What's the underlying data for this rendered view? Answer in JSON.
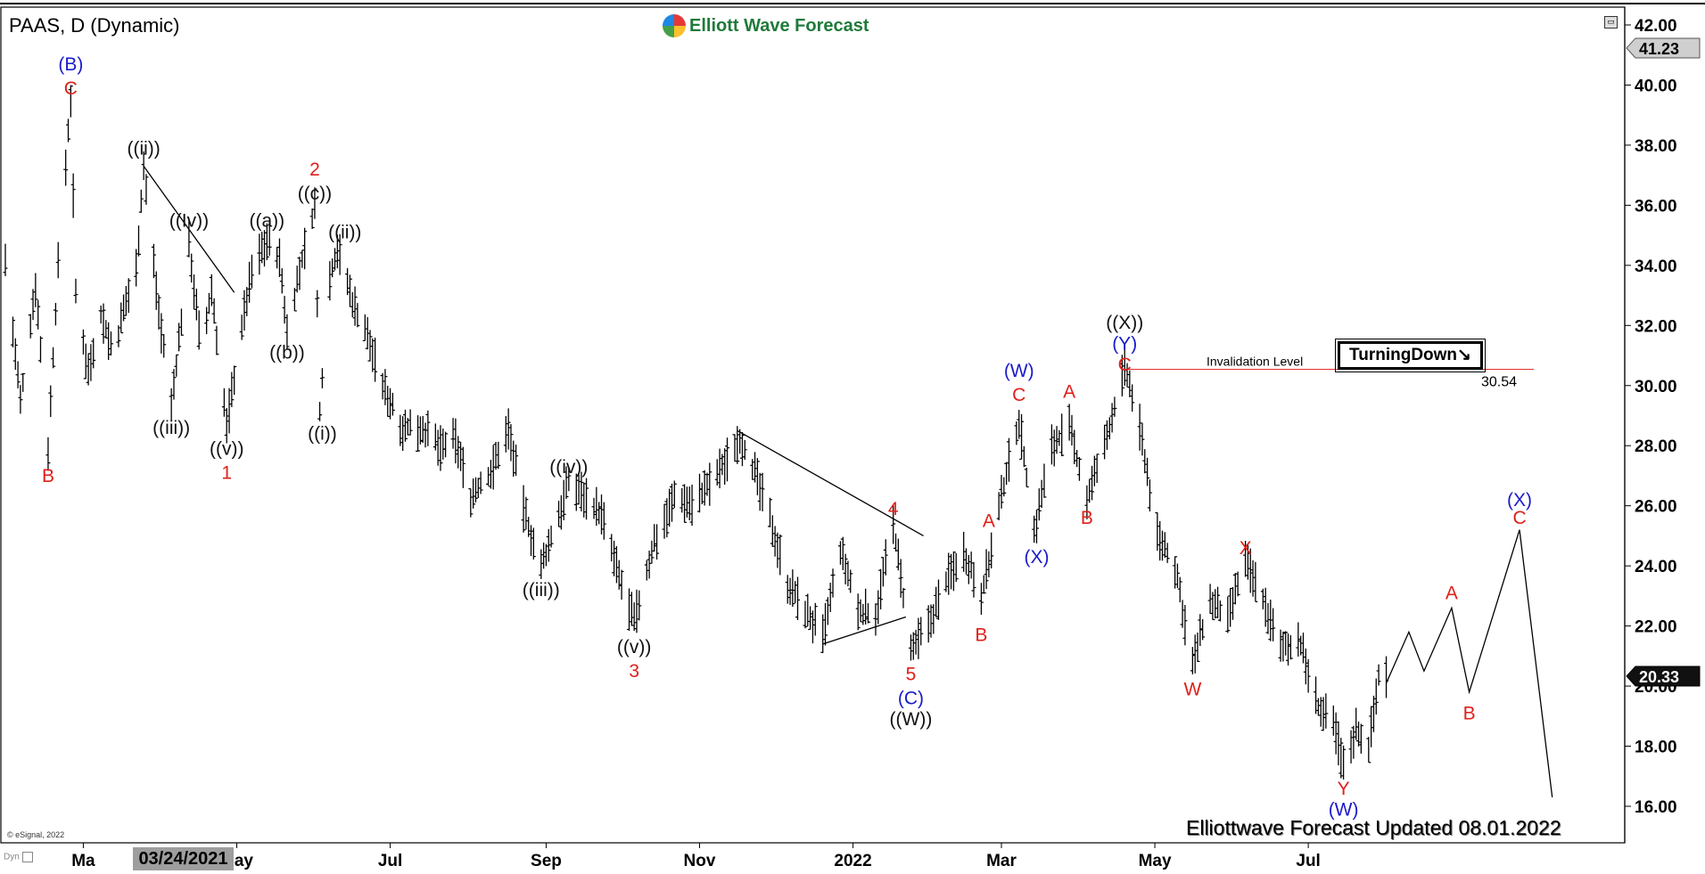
{
  "header": {
    "symbol_title": "PAAS, D (Dynamic)",
    "brand": "Elliott Wave Forecast",
    "status_icon": "window-restore-icon"
  },
  "footer": {
    "text": "Elliottwave Forecast Updated 08.01.2022",
    "copyright": "© eSignal, 2022",
    "dynamic_tag": "Dyn",
    "selected_date": "03/24/2021"
  },
  "turning_badge": {
    "label": "TurningDown",
    "icon": "arrow-down-right-icon"
  },
  "invalidation": {
    "label": "Invalidation Level",
    "price": "30.54",
    "value": 30.54,
    "color": "#e53935"
  },
  "price_tags": {
    "top": "41.23",
    "current": "20.33"
  },
  "colors": {
    "red": "#e0201a",
    "blue": "#1a1acc",
    "black": "#111111",
    "bars": "#000000"
  },
  "chart_data": {
    "type": "ohlc-bar",
    "ylim": [
      15.2,
      42.5
    ],
    "y_ticks": [
      "16.00",
      "18.00",
      "20.00",
      "22.00",
      "24.00",
      "26.00",
      "28.00",
      "30.00",
      "32.00",
      "34.00",
      "36.00",
      "38.00",
      "40.00",
      "42.00"
    ],
    "x_tick_labels": [
      {
        "date": "2021-03-01",
        "label": "Ma"
      },
      {
        "date": "2021-05-01",
        "label": "May"
      },
      {
        "date": "2021-07-01",
        "label": "Jul"
      },
      {
        "date": "2021-09-01",
        "label": "Sep"
      },
      {
        "date": "2021-11-01",
        "label": "Nov"
      },
      {
        "date": "2022-01-01",
        "label": "2022"
      },
      {
        "date": "2022-03-01",
        "label": "Mar"
      },
      {
        "date": "2022-05-01",
        "label": "May"
      },
      {
        "date": "2022-07-01",
        "label": "Jul"
      }
    ],
    "x_domain": [
      "2021-01-29",
      "2022-10-10"
    ],
    "price_path": [
      [
        "2021-01-29",
        34.2
      ],
      [
        "2021-02-04",
        29.4
      ],
      [
        "2021-02-10",
        33.4
      ],
      [
        "2021-02-15",
        27.9
      ],
      [
        "2021-02-19",
        34.0
      ],
      [
        "2021-02-24",
        39.6
      ],
      [
        "2021-02-26",
        33.0
      ],
      [
        "2021-03-03",
        30.5
      ],
      [
        "2021-03-08",
        32.4
      ],
      [
        "2021-03-13",
        31.0
      ],
      [
        "2021-03-18",
        32.8
      ],
      [
        "2021-03-22",
        33.9
      ],
      [
        "2021-03-25",
        37.3
      ],
      [
        "2021-03-31",
        32.5
      ],
      [
        "2021-04-05",
        29.3
      ],
      [
        "2021-04-09",
        32.2
      ],
      [
        "2021-04-12",
        34.8
      ],
      [
        "2021-04-17",
        31.0
      ],
      [
        "2021-04-21",
        33.2
      ],
      [
        "2021-04-27",
        28.6
      ],
      [
        "2021-05-02",
        31.5
      ],
      [
        "2021-05-07",
        33.8
      ],
      [
        "2021-05-13",
        34.9
      ],
      [
        "2021-05-18",
        34.2
      ],
      [
        "2021-05-21",
        31.8
      ],
      [
        "2021-05-26",
        33.8
      ],
      [
        "2021-06-01",
        36.0
      ],
      [
        "2021-06-03",
        29.2
      ],
      [
        "2021-06-07",
        33.6
      ],
      [
        "2021-06-10",
        34.6
      ],
      [
        "2021-06-16",
        32.8
      ],
      [
        "2021-06-21",
        31.9
      ],
      [
        "2021-06-28",
        30.0
      ],
      [
        "2021-07-06",
        28.6
      ],
      [
        "2021-07-14",
        28.6
      ],
      [
        "2021-07-21",
        27.9
      ],
      [
        "2021-07-27",
        28.2
      ],
      [
        "2021-08-02",
        26.3
      ],
      [
        "2021-08-10",
        27.1
      ],
      [
        "2021-08-17",
        28.6
      ],
      [
        "2021-08-23",
        25.9
      ],
      [
        "2021-08-30",
        23.9
      ],
      [
        "2021-09-06",
        25.7
      ],
      [
        "2021-09-10",
        26.8
      ],
      [
        "2021-09-17",
        26.3
      ],
      [
        "2021-09-23",
        25.7
      ],
      [
        "2021-09-30",
        23.6
      ],
      [
        "2021-10-06",
        22.1
      ],
      [
        "2021-10-14",
        24.8
      ],
      [
        "2021-10-22",
        26.3
      ],
      [
        "2021-10-29",
        26.1
      ],
      [
        "2021-11-05",
        26.7
      ],
      [
        "2021-11-11",
        27.4
      ],
      [
        "2021-11-17",
        28.3
      ],
      [
        "2021-11-22",
        27.3
      ],
      [
        "2021-11-30",
        25.3
      ],
      [
        "2021-12-06",
        23.4
      ],
      [
        "2021-12-13",
        22.5
      ],
      [
        "2021-12-20",
        21.6
      ],
      [
        "2021-12-27",
        24.5
      ],
      [
        "2022-01-03",
        22.5
      ],
      [
        "2022-01-10",
        22.4
      ],
      [
        "2022-01-17",
        25.4
      ],
      [
        "2022-01-24",
        21.1
      ],
      [
        "2022-01-31",
        22.0
      ],
      [
        "2022-02-07",
        23.5
      ],
      [
        "2022-02-14",
        24.5
      ],
      [
        "2022-02-21",
        23.1
      ],
      [
        "2022-02-24",
        24.1
      ],
      [
        "2022-03-03",
        27.1
      ],
      [
        "2022-03-08",
        28.9
      ],
      [
        "2022-03-14",
        25.1
      ],
      [
        "2022-03-21",
        28.0
      ],
      [
        "2022-03-28",
        28.6
      ],
      [
        "2022-04-04",
        26.2
      ],
      [
        "2022-04-11",
        28.0
      ],
      [
        "2022-04-19",
        30.6
      ],
      [
        "2022-04-25",
        28.6
      ],
      [
        "2022-05-02",
        25.0
      ],
      [
        "2022-05-09",
        24.0
      ],
      [
        "2022-05-16",
        20.7
      ],
      [
        "2022-05-23",
        22.8
      ],
      [
        "2022-05-30",
        22.2
      ],
      [
        "2022-06-06",
        24.2
      ],
      [
        "2022-06-13",
        22.9
      ],
      [
        "2022-06-20",
        21.2
      ],
      [
        "2022-06-27",
        21.6
      ],
      [
        "2022-07-05",
        19.3
      ],
      [
        "2022-07-12",
        18.5
      ],
      [
        "2022-07-15",
        17.3
      ],
      [
        "2022-07-20",
        18.6
      ],
      [
        "2022-07-25",
        18.0
      ],
      [
        "2022-07-29",
        20.3
      ],
      [
        "2022-08-01",
        20.4
      ]
    ],
    "projection_path": [
      [
        "2022-08-01",
        20.1
      ],
      [
        "2022-08-10",
        21.8
      ],
      [
        "2022-08-16",
        20.5
      ],
      [
        "2022-08-27",
        22.6
      ],
      [
        "2022-09-03",
        19.8
      ],
      [
        "2022-09-23",
        25.2
      ],
      [
        "2022-10-06",
        16.3
      ]
    ],
    "trend_lines": [
      {
        "from": [
          "2021-03-25",
          37.3
        ],
        "to": [
          "2021-04-30",
          33.1
        ]
      },
      {
        "from": [
          "2021-11-16",
          28.5
        ],
        "to": [
          "2022-01-29",
          25.0
        ]
      },
      {
        "from": [
          "2021-12-20",
          21.4
        ],
        "to": [
          "2022-01-22",
          22.3
        ]
      }
    ],
    "wave_labels": [
      {
        "text": "(B)",
        "date": "2021-02-24",
        "price": 40.7,
        "color": "blue"
      },
      {
        "text": "C",
        "date": "2021-02-24",
        "price": 39.9,
        "color": "red"
      },
      {
        "text": "B",
        "date": "2021-02-15",
        "price": 27.0,
        "color": "red"
      },
      {
        "text": "((ii))",
        "date": "2021-03-25",
        "price": 37.9,
        "color": "black"
      },
      {
        "text": "((iii))",
        "date": "2021-04-05",
        "price": 28.6,
        "color": "black"
      },
      {
        "text": "((Iv))",
        "date": "2021-04-12",
        "price": 35.5,
        "color": "black"
      },
      {
        "text": "((v))",
        "date": "2021-04-27",
        "price": 27.9,
        "color": "black"
      },
      {
        "text": "1",
        "date": "2021-04-27",
        "price": 27.1,
        "color": "red"
      },
      {
        "text": "((a))",
        "date": "2021-05-13",
        "price": 35.5,
        "color": "black"
      },
      {
        "text": "((b))",
        "date": "2021-05-21",
        "price": 31.1,
        "color": "black"
      },
      {
        "text": "2",
        "date": "2021-06-01",
        "price": 37.2,
        "color": "red"
      },
      {
        "text": "((c))",
        "date": "2021-06-01",
        "price": 36.4,
        "color": "black"
      },
      {
        "text": "((ii))",
        "date": "2021-06-13",
        "price": 35.1,
        "color": "black"
      },
      {
        "text": "((i))",
        "date": "2021-06-04",
        "price": 28.4,
        "color": "black"
      },
      {
        "text": "((iv))",
        "date": "2021-09-10",
        "price": 27.3,
        "color": "black"
      },
      {
        "text": "((iii))",
        "date": "2021-08-30",
        "price": 23.2,
        "color": "black"
      },
      {
        "text": "((v))",
        "date": "2021-10-06",
        "price": 21.3,
        "color": "black"
      },
      {
        "text": "3",
        "date": "2021-10-06",
        "price": 20.5,
        "color": "red"
      },
      {
        "text": "4",
        "date": "2022-01-17",
        "price": 25.9,
        "color": "red"
      },
      {
        "text": "5",
        "date": "2022-01-24",
        "price": 20.4,
        "color": "red"
      },
      {
        "text": "(C)",
        "date": "2022-01-24",
        "price": 19.6,
        "color": "blue"
      },
      {
        "text": "((W))",
        "date": "2022-01-24",
        "price": 18.9,
        "color": "black"
      },
      {
        "text": "A",
        "date": "2022-02-24",
        "price": 25.5,
        "color": "red"
      },
      {
        "text": "B",
        "date": "2022-02-21",
        "price": 21.7,
        "color": "red"
      },
      {
        "text": "(W)",
        "date": "2022-03-08",
        "price": 30.5,
        "color": "blue"
      },
      {
        "text": "C",
        "date": "2022-03-08",
        "price": 29.7,
        "color": "red"
      },
      {
        "text": "(X)",
        "date": "2022-03-15",
        "price": 24.3,
        "color": "blue"
      },
      {
        "text": "A",
        "date": "2022-03-28",
        "price": 29.8,
        "color": "red"
      },
      {
        "text": "B",
        "date": "2022-04-04",
        "price": 25.6,
        "color": "red"
      },
      {
        "text": "((X))",
        "date": "2022-04-19",
        "price": 32.1,
        "color": "black"
      },
      {
        "text": "(Y)",
        "date": "2022-04-19",
        "price": 31.4,
        "color": "blue"
      },
      {
        "text": "C",
        "date": "2022-04-19",
        "price": 30.7,
        "color": "red"
      },
      {
        "text": "W",
        "date": "2022-05-16",
        "price": 19.9,
        "color": "red"
      },
      {
        "text": "X",
        "date": "2022-06-06",
        "price": 24.6,
        "color": "red"
      },
      {
        "text": "Y",
        "date": "2022-07-15",
        "price": 16.6,
        "color": "red"
      },
      {
        "text": "(W)",
        "date": "2022-07-15",
        "price": 15.9,
        "color": "blue"
      },
      {
        "text": "A",
        "date": "2022-08-27",
        "price": 23.1,
        "color": "red"
      },
      {
        "text": "B",
        "date": "2022-09-03",
        "price": 19.1,
        "color": "red"
      },
      {
        "text": "(X)",
        "date": "2022-09-23",
        "price": 26.2,
        "color": "blue"
      },
      {
        "text": "C",
        "date": "2022-09-23",
        "price": 25.6,
        "color": "red"
      }
    ]
  }
}
